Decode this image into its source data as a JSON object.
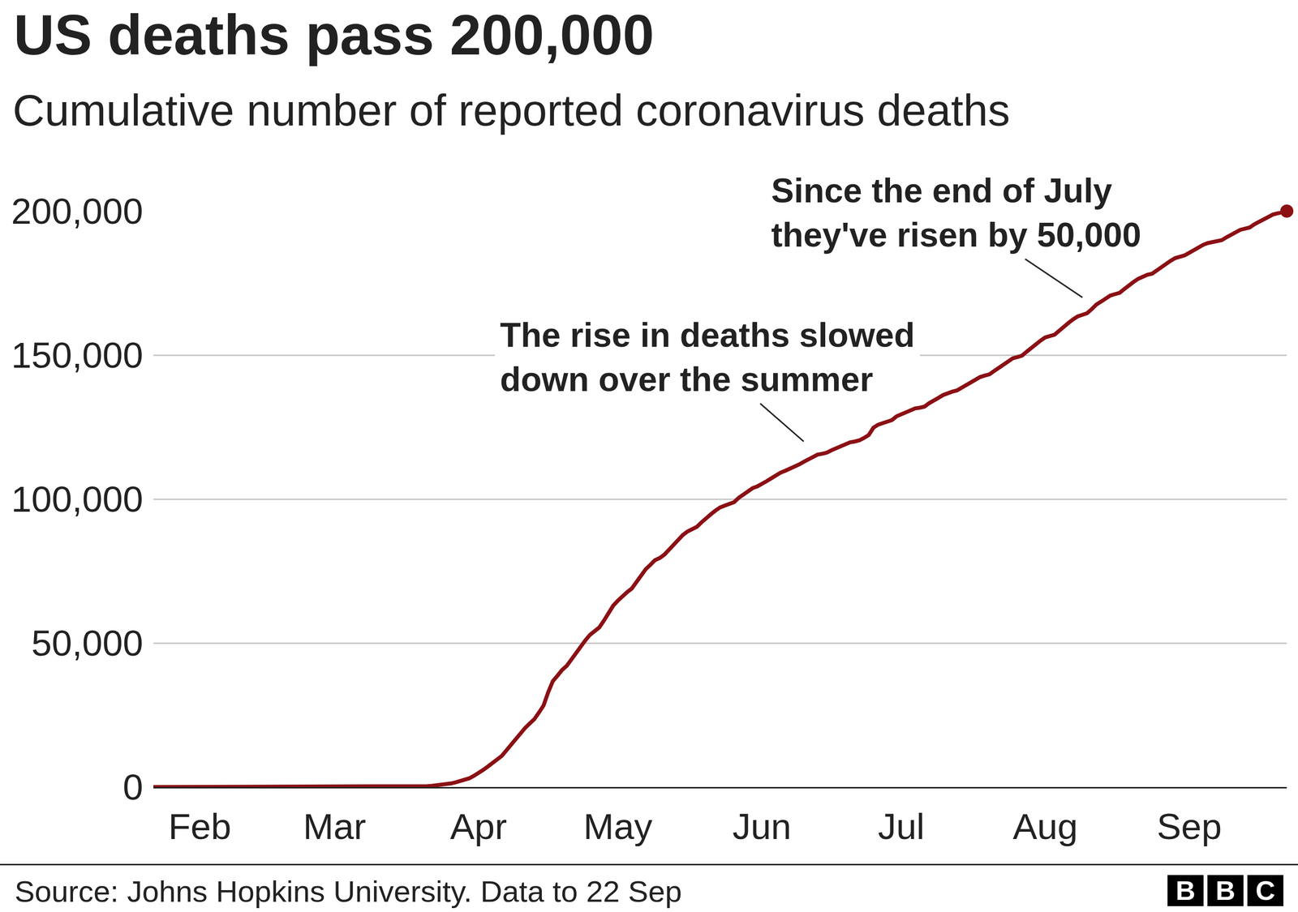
{
  "chart_data": {
    "type": "line",
    "title": "US deaths pass 200,000",
    "subtitle": "Cumulative number of reported coronavirus deaths",
    "source": "Source: Johns Hopkins University. Data to 22 Sep",
    "logo": "BBC",
    "color": "#8b1014",
    "marker": "last",
    "grid": true,
    "ylim": [
      0,
      200000
    ],
    "yticks": [
      0,
      {
        "value": 50000,
        "label": "50,000"
      },
      {
        "value": 100000,
        "label": "100,000"
      },
      {
        "value": 150000,
        "label": "150,000"
      },
      {
        "value": 200000,
        "label": "200,000"
      }
    ],
    "annotations": [
      {
        "text": [
          "The rise in deaths slowed",
          "down over the summer"
        ],
        "x": 140,
        "y": 120000
      },
      {
        "text": [
          "Since the end of July",
          "they've risen by 50,000"
        ],
        "x": 200,
        "y": 170000
      }
    ],
    "categories": [
      null,
      null,
      null,
      null,
      null,
      null,
      null,
      null,
      null,
      null,
      "Feb",
      null,
      null,
      null,
      null,
      null,
      null,
      null,
      null,
      null,
      null,
      null,
      null,
      null,
      null,
      null,
      null,
      null,
      null,
      null,
      null,
      null,
      null,
      null,
      null,
      null,
      null,
      null,
      null,
      "Mar",
      null,
      null,
      null,
      null,
      null,
      null,
      null,
      null,
      null,
      null,
      null,
      null,
      null,
      null,
      null,
      null,
      null,
      null,
      null,
      null,
      null,
      null,
      null,
      null,
      null,
      null,
      null,
      null,
      null,
      null,
      "Apr",
      null,
      null,
      null,
      null,
      null,
      null,
      null,
      null,
      null,
      null,
      null,
      null,
      null,
      null,
      null,
      null,
      null,
      null,
      null,
      null,
      null,
      null,
      null,
      null,
      null,
      null,
      null,
      null,
      null,
      "May",
      null,
      null,
      null,
      null,
      null,
      null,
      null,
      null,
      null,
      null,
      null,
      null,
      null,
      null,
      null,
      null,
      null,
      null,
      null,
      null,
      null,
      null,
      null,
      null,
      null,
      null,
      null,
      null,
      null,
      null,
      "Jun",
      null,
      null,
      null,
      null,
      null,
      null,
      null,
      null,
      null,
      null,
      null,
      null,
      null,
      null,
      null,
      null,
      null,
      null,
      null,
      null,
      null,
      null,
      null,
      null,
      null,
      null,
      null,
      null,
      null,
      "Jul",
      null,
      null,
      null,
      null,
      null,
      null,
      null,
      null,
      null,
      null,
      null,
      null,
      null,
      null,
      null,
      null,
      null,
      null,
      null,
      null,
      null,
      null,
      null,
      null,
      null,
      null,
      null,
      null,
      null,
      null,
      "Aug",
      null,
      null,
      null,
      null,
      null,
      null,
      null,
      null,
      null,
      null,
      null,
      null,
      null,
      null,
      null,
      null,
      null,
      null,
      null,
      null,
      null,
      null,
      null,
      null,
      null,
      null,
      null,
      null,
      null,
      null,
      "Sep",
      null,
      null,
      null,
      null,
      null,
      null,
      null,
      null,
      null,
      null,
      null,
      null,
      null,
      null,
      null,
      null,
      null,
      null,
      null,
      null,
      null
    ],
    "values": [
      0,
      0,
      0,
      0,
      0,
      0,
      0,
      0,
      0,
      0,
      0,
      0,
      0,
      0,
      0,
      0,
      0,
      0,
      0,
      0,
      0,
      0,
      0,
      0,
      0,
      0,
      0,
      0,
      0,
      0,
      0,
      0,
      0,
      0,
      0,
      0,
      0,
      0,
      1,
      2,
      6,
      9,
      11,
      12,
      15,
      19,
      22,
      26,
      30,
      38,
      41,
      49,
      57,
      69,
      86,
      109,
      150,
      206,
      255,
      301,
      427,
      550,
      704,
      942,
      1209,
      1581,
      2026,
      2467,
      3008,
      3873,
      4757,
      5926,
      7087,
      8407,
      9619,
      10783,
      12722,
      14695,
      16478,
      18586,
      20463,
      22020,
      23529,
      25832,
      28326,
      32916,
      36773,
      38664,
      40661,
      42094,
      44444,
      46622,
      48887,
      50939,
      52865,
      54265,
      55424,
      57796,
      60467,
      62996,
      64715,
      66369,
      67682,
      68934,
      71078,
      73431,
      75662,
      77180,
      78795,
      79526,
      80682,
      82376,
      84136,
      85898,
      87530,
      88754,
      89562,
      90347,
      91921,
      93439,
      94702,
      95979,
      97087,
      97720,
      98223,
      98916,
      100418,
      101617,
      102836,
      103781,
      104383,
      105147,
      106180,
      107175,
      108211,
      109143,
      109802,
      110514,
      111007,
      112006,
      112924,
      113820,
      114669,
      115436,
      115732,
      116127,
      116963,
      117717,
      118435,
      119132,
      119719,
      119977,
      120402,
      121225,
      122247,
      124749,
      125803,
      126360,
      126739,
      127417,
      128740,
      129434,
      130122,
      130813,
      131480,
      131715,
      132101,
      133291,
      134097,
      135130,
      136109,
      136866,
      137306,
      137724,
      138659,
      139593,
      140567,
      141493,
      142391,
      142877,
      143315,
      144456,
      145591,
      146785,
      147938,
      148868,
      149300,
      149807,
      151171,
      152591,
      153845,
      155027,
      156134,
      156637,
      157083,
      158443,
      159917,
      161171,
      162392,
      163460,
      163969,
      164511,
      165935,
      167546,
      168540,
      169623,
      170675,
      171161,
      171619,
      172894,
      174261,
      175368,
      176474,
      177364,
      177909,
      178254,
      179464,
      180651,
      181763,
      182763,
      183689,
      184108,
      184613,
      185500,
      186500,
      187400,
      188300,
      188900,
      189200,
      189500,
      189900,
      190900,
      191800,
      192800,
      193500,
      193900,
      194300,
      195400,
      196300,
      197200,
      198100,
      198800,
      199200,
      199600,
      200000
    ]
  }
}
